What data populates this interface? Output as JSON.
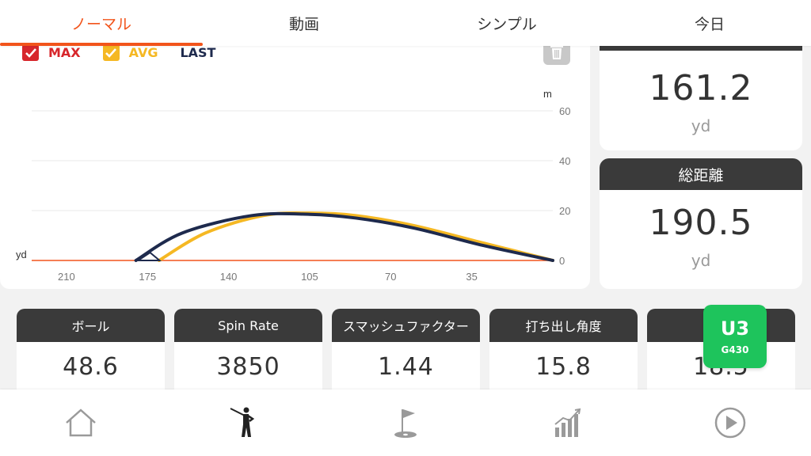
{
  "tabs": [
    {
      "label": "ノーマル",
      "active": true
    },
    {
      "label": "動画",
      "active": false
    },
    {
      "label": "シンプル",
      "active": false
    },
    {
      "label": "今日",
      "active": false
    }
  ],
  "legend": {
    "max": "MAX",
    "avg": "AVG",
    "last": "LAST"
  },
  "chart_data": {
    "type": "line",
    "x_unit": "yd",
    "y_unit": "m",
    "x_ticks": [
      "210",
      "175",
      "140",
      "105",
      "70",
      "35"
    ],
    "y_ticks": [
      "60",
      "40",
      "20",
      "0"
    ],
    "xlim": [
      0,
      225
    ],
    "ylim": [
      0,
      60
    ],
    "series": [
      {
        "name": "AVG",
        "color": "#f5b823",
        "x": [
          170,
          150,
          125,
          105,
          85,
          60,
          30,
          0
        ],
        "y": [
          0,
          11,
          18,
          19,
          18,
          14,
          7,
          0
        ]
      },
      {
        "name": "LAST",
        "color": "#1e2a4d",
        "x": [
          180,
          160,
          130,
          105,
          85,
          60,
          30,
          0
        ],
        "y": [
          0,
          11,
          18,
          18.5,
          17,
          13,
          6,
          0
        ]
      }
    ],
    "carry_marker": {
      "x": 178,
      "y": 0
    }
  },
  "carry_card": {
    "value": "161.2",
    "unit": "yd"
  },
  "total_card": {
    "title": "総距離",
    "value": "190.5",
    "unit": "yd"
  },
  "metrics": [
    {
      "title": "ボール",
      "value": "48.6"
    },
    {
      "title": "Spin Rate",
      "value": "3850"
    },
    {
      "title": "スマッシュファクター",
      "value": "1.44"
    },
    {
      "title": "打ち出し角度",
      "value": "15.8"
    },
    {
      "title": "",
      "value": "18.5"
    }
  ],
  "club": {
    "name": "U3",
    "model": "G430",
    "color": "#1ec45c"
  },
  "nav": [
    "home-icon",
    "golfer-icon",
    "course-flag-icon",
    "stats-chart-icon",
    "play-icon"
  ],
  "colors": {
    "accent": "#f2541b",
    "dark": "#3a3a3a",
    "max": "#d7262b",
    "avg": "#f5b823",
    "last": "#1e2a4d"
  }
}
